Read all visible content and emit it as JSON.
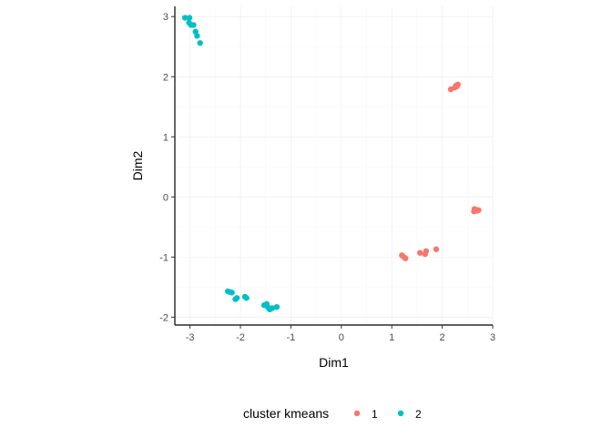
{
  "chart_data": {
    "type": "scatter",
    "xlabel": "Dim1",
    "ylabel": "Dim2",
    "xlim": [
      -3.3,
      3.0
    ],
    "ylim": [
      -2.13,
      3.17
    ],
    "xticks": [
      -3,
      -2,
      -1,
      0,
      1,
      2,
      3
    ],
    "yticks": [
      -2,
      -1,
      0,
      1,
      2,
      3
    ],
    "grid": true,
    "legend": {
      "title": "cluster kmeans",
      "position": "bottom",
      "entries": [
        "1",
        "2"
      ]
    },
    "colors": {
      "1": "#F8766D",
      "2": "#00BFC4"
    },
    "series": [
      {
        "name": "1",
        "points": [
          [
            2.17,
            1.79
          ],
          [
            2.25,
            1.82
          ],
          [
            2.29,
            1.84
          ],
          [
            2.31,
            1.87
          ],
          [
            2.27,
            1.85
          ],
          [
            2.63,
            -0.24
          ],
          [
            2.66,
            -0.21
          ],
          [
            2.69,
            -0.23
          ],
          [
            2.72,
            -0.22
          ],
          [
            2.64,
            -0.2
          ],
          [
            1.2,
            -0.97
          ],
          [
            1.24,
            -1.0
          ],
          [
            1.27,
            -1.02
          ],
          [
            1.56,
            -0.93
          ],
          [
            1.66,
            -0.95
          ],
          [
            1.68,
            -0.9
          ],
          [
            1.88,
            -0.87
          ]
        ]
      },
      {
        "name": "2",
        "points": [
          [
            -3.1,
            2.98
          ],
          [
            -3.01,
            2.98
          ],
          [
            -3.02,
            2.9
          ],
          [
            -2.98,
            2.86
          ],
          [
            -2.93,
            2.86
          ],
          [
            -2.89,
            2.75
          ],
          [
            -2.86,
            2.68
          ],
          [
            -2.8,
            2.56
          ],
          [
            -2.25,
            -1.57
          ],
          [
            -2.21,
            -1.58
          ],
          [
            -2.17,
            -1.59
          ],
          [
            -2.07,
            -1.68
          ],
          [
            -2.1,
            -1.7
          ],
          [
            -1.91,
            -1.66
          ],
          [
            -1.88,
            -1.68
          ],
          [
            -1.53,
            -1.8
          ],
          [
            -1.48,
            -1.78
          ],
          [
            -1.45,
            -1.84
          ],
          [
            -1.42,
            -1.87
          ],
          [
            -1.37,
            -1.85
          ],
          [
            -1.28,
            -1.83
          ]
        ]
      }
    ]
  }
}
